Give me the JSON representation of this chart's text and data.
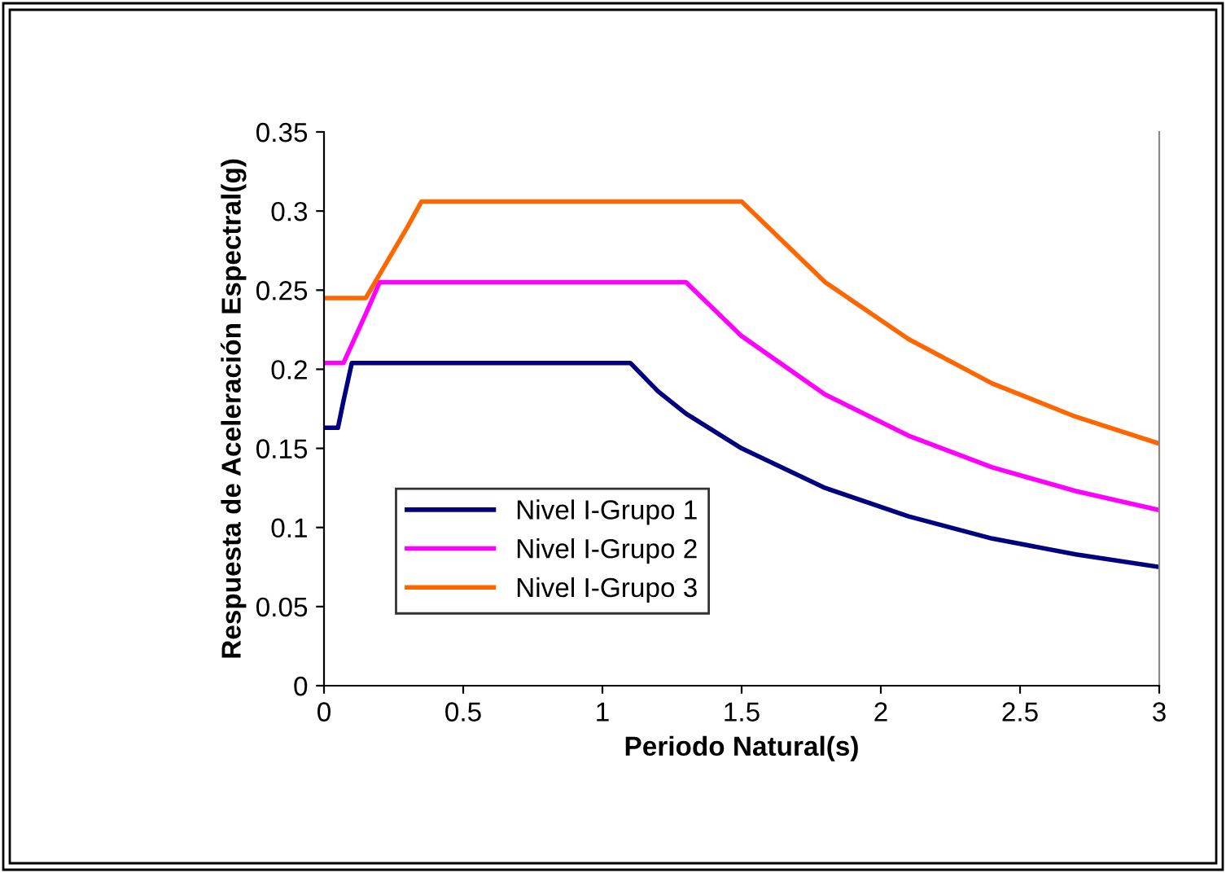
{
  "chart_data": {
    "type": "line",
    "xlabel": "Periodo Natural(s)",
    "ylabel": "Respuesta de Aceleración Espectral(g)",
    "xlim": [
      0,
      3
    ],
    "xticks": [
      0,
      0.5,
      1,
      1.5,
      2,
      2.5,
      3
    ],
    "ylim": [
      0,
      0.35
    ],
    "yticks": [
      0,
      0.05,
      0.1,
      0.15,
      0.2,
      0.25,
      0.3,
      0.35
    ],
    "grid": false,
    "legend": "bottom left",
    "marker": "none",
    "line_style": "solid",
    "series": [
      {
        "name": "Nivel I-Grupo 1",
        "color": "#000080",
        "x": [
          0,
          0.05,
          0.07,
          0.1,
          1.1,
          1.2,
          1.3,
          1.5,
          1.8,
          2.1,
          2.4,
          2.7,
          3.0
        ],
        "values": [
          0.163,
          0.163,
          0.18,
          0.204,
          0.204,
          0.186,
          0.172,
          0.15,
          0.125,
          0.107,
          0.093,
          0.083,
          0.075
        ]
      },
      {
        "name": "Nivel I-Grupo 2",
        "color": "#ff00ff",
        "x": [
          0,
          0.07,
          0.15,
          0.2,
          1.3,
          1.5,
          1.8,
          2.1,
          2.4,
          2.7,
          3.0
        ],
        "values": [
          0.204,
          0.204,
          0.235,
          0.255,
          0.255,
          0.221,
          0.184,
          0.158,
          0.138,
          0.123,
          0.111
        ]
      },
      {
        "name": "Nivel I-Grupo 3",
        "color": "#ff6600",
        "x": [
          0,
          0.15,
          0.2,
          0.3,
          0.35,
          1.5,
          1.8,
          2.1,
          2.4,
          2.7,
          3.0
        ],
        "values": [
          0.245,
          0.245,
          0.26,
          0.29,
          0.306,
          0.306,
          0.255,
          0.219,
          0.191,
          0.17,
          0.153
        ]
      }
    ]
  }
}
